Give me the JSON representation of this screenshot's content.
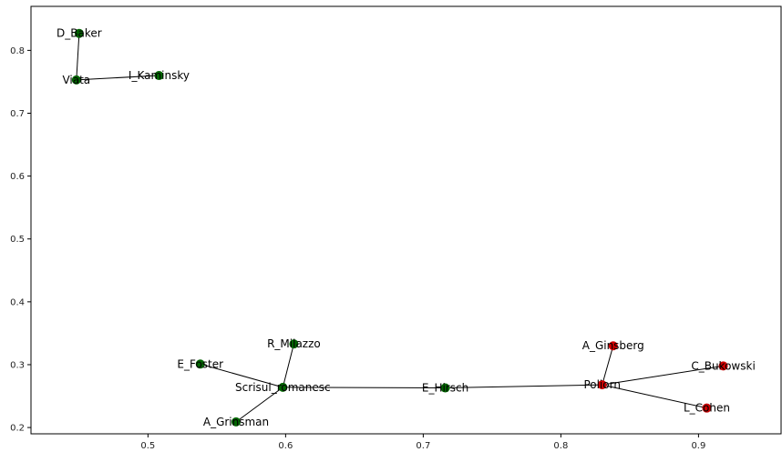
{
  "chart_data": {
    "type": "scatter",
    "title": "",
    "xlabel": "",
    "ylabel": "",
    "xlim": [
      0.415,
      0.96
    ],
    "ylim": [
      0.19,
      0.87
    ],
    "grid": false,
    "x_ticks": [
      "0.5",
      "0.6",
      "0.7",
      "0.8",
      "0.9"
    ],
    "y_ticks": [
      "0.2",
      "0.3",
      "0.4",
      "0.5",
      "0.6",
      "0.7",
      "0.8"
    ],
    "colors": {
      "green": "#006400",
      "red": "#cc0000",
      "edge": "#000000"
    },
    "nodes": [
      {
        "id": "D_Baker",
        "label": "D_Baker",
        "x": 0.45,
        "y": 0.827,
        "color": "green"
      },
      {
        "id": "Viata",
        "label": "Viata",
        "x": 0.448,
        "y": 0.753,
        "color": "green"
      },
      {
        "id": "I_Kaminsky",
        "label": "I_Kaminsky",
        "x": 0.508,
        "y": 0.76,
        "color": "green"
      },
      {
        "id": "R_Milazzo",
        "label": "R_Milazzo",
        "x": 0.606,
        "y": 0.333,
        "color": "green"
      },
      {
        "id": "E_Foster",
        "label": "E_Foster",
        "x": 0.538,
        "y": 0.301,
        "color": "green"
      },
      {
        "id": "Scrisul_romanesc",
        "label": "Scrisul_romanesc",
        "x": 0.598,
        "y": 0.264,
        "color": "green"
      },
      {
        "id": "A_Grinsman",
        "label": "A_Grinsman",
        "x": 0.564,
        "y": 0.209,
        "color": "green"
      },
      {
        "id": "E_Hirsch",
        "label": "E_Hirsch",
        "x": 0.716,
        "y": 0.263,
        "color": "green"
      },
      {
        "id": "A_Ginsberg",
        "label": "A_Ginsberg",
        "x": 0.838,
        "y": 0.33,
        "color": "red"
      },
      {
        "id": "Poliorn",
        "label": "Poliorn",
        "x": 0.83,
        "y": 0.268,
        "color": "red"
      },
      {
        "id": "C_Bukowski",
        "label": "C_Bukowski",
        "x": 0.918,
        "y": 0.298,
        "color": "red"
      },
      {
        "id": "L_Cohen",
        "label": "L_Cohen",
        "x": 0.906,
        "y": 0.231,
        "color": "red"
      }
    ],
    "edges": [
      [
        "D_Baker",
        "Viata"
      ],
      [
        "Viata",
        "I_Kaminsky"
      ],
      [
        "E_Foster",
        "Scrisul_romanesc"
      ],
      [
        "R_Milazzo",
        "Scrisul_romanesc"
      ],
      [
        "A_Grinsman",
        "Scrisul_romanesc"
      ],
      [
        "Scrisul_romanesc",
        "E_Hirsch"
      ],
      [
        "E_Hirsch",
        "Poliorn"
      ],
      [
        "A_Ginsberg",
        "Poliorn"
      ],
      [
        "Poliorn",
        "C_Bukowski"
      ],
      [
        "Poliorn",
        "L_Cohen"
      ]
    ]
  }
}
